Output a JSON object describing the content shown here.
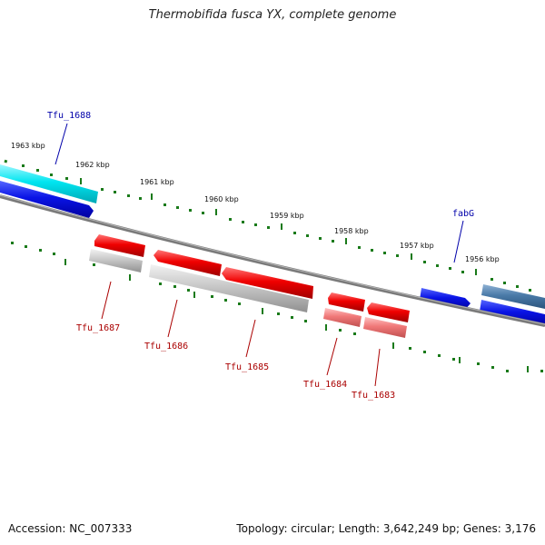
{
  "title": "Thermobifida fusca YX, complete genome",
  "footer": {
    "accession": "Accession: NC_007333",
    "summary": "Topology: circular; Length: 3,642,249 bp; Genes: 3,176"
  },
  "colors": {
    "backbone": "#7a7a7a",
    "tick": "#1a7a1a",
    "top_label": "#0000aa",
    "bottom_label": "#aa0000"
  },
  "scale_labels": [
    "1963 kbp",
    "1962 kbp",
    "1961 kbp",
    "1960 kbp",
    "1959 kbp",
    "1958 kbp",
    "1957 kbp",
    "1956 kbp"
  ],
  "genes": [
    {
      "name": "Tfu_1688",
      "label": "Tfu_1688"
    },
    {
      "name": "fabG",
      "label": "fabG"
    },
    {
      "name": "Tfu_1687",
      "label": "Tfu_1687"
    },
    {
      "name": "Tfu_1686",
      "label": "Tfu_1686"
    },
    {
      "name": "Tfu_1685",
      "label": "Tfu_1685"
    },
    {
      "name": "Tfu_1684",
      "label": "Tfu_1684"
    },
    {
      "name": "Tfu_1683",
      "label": "Tfu_1683"
    }
  ]
}
